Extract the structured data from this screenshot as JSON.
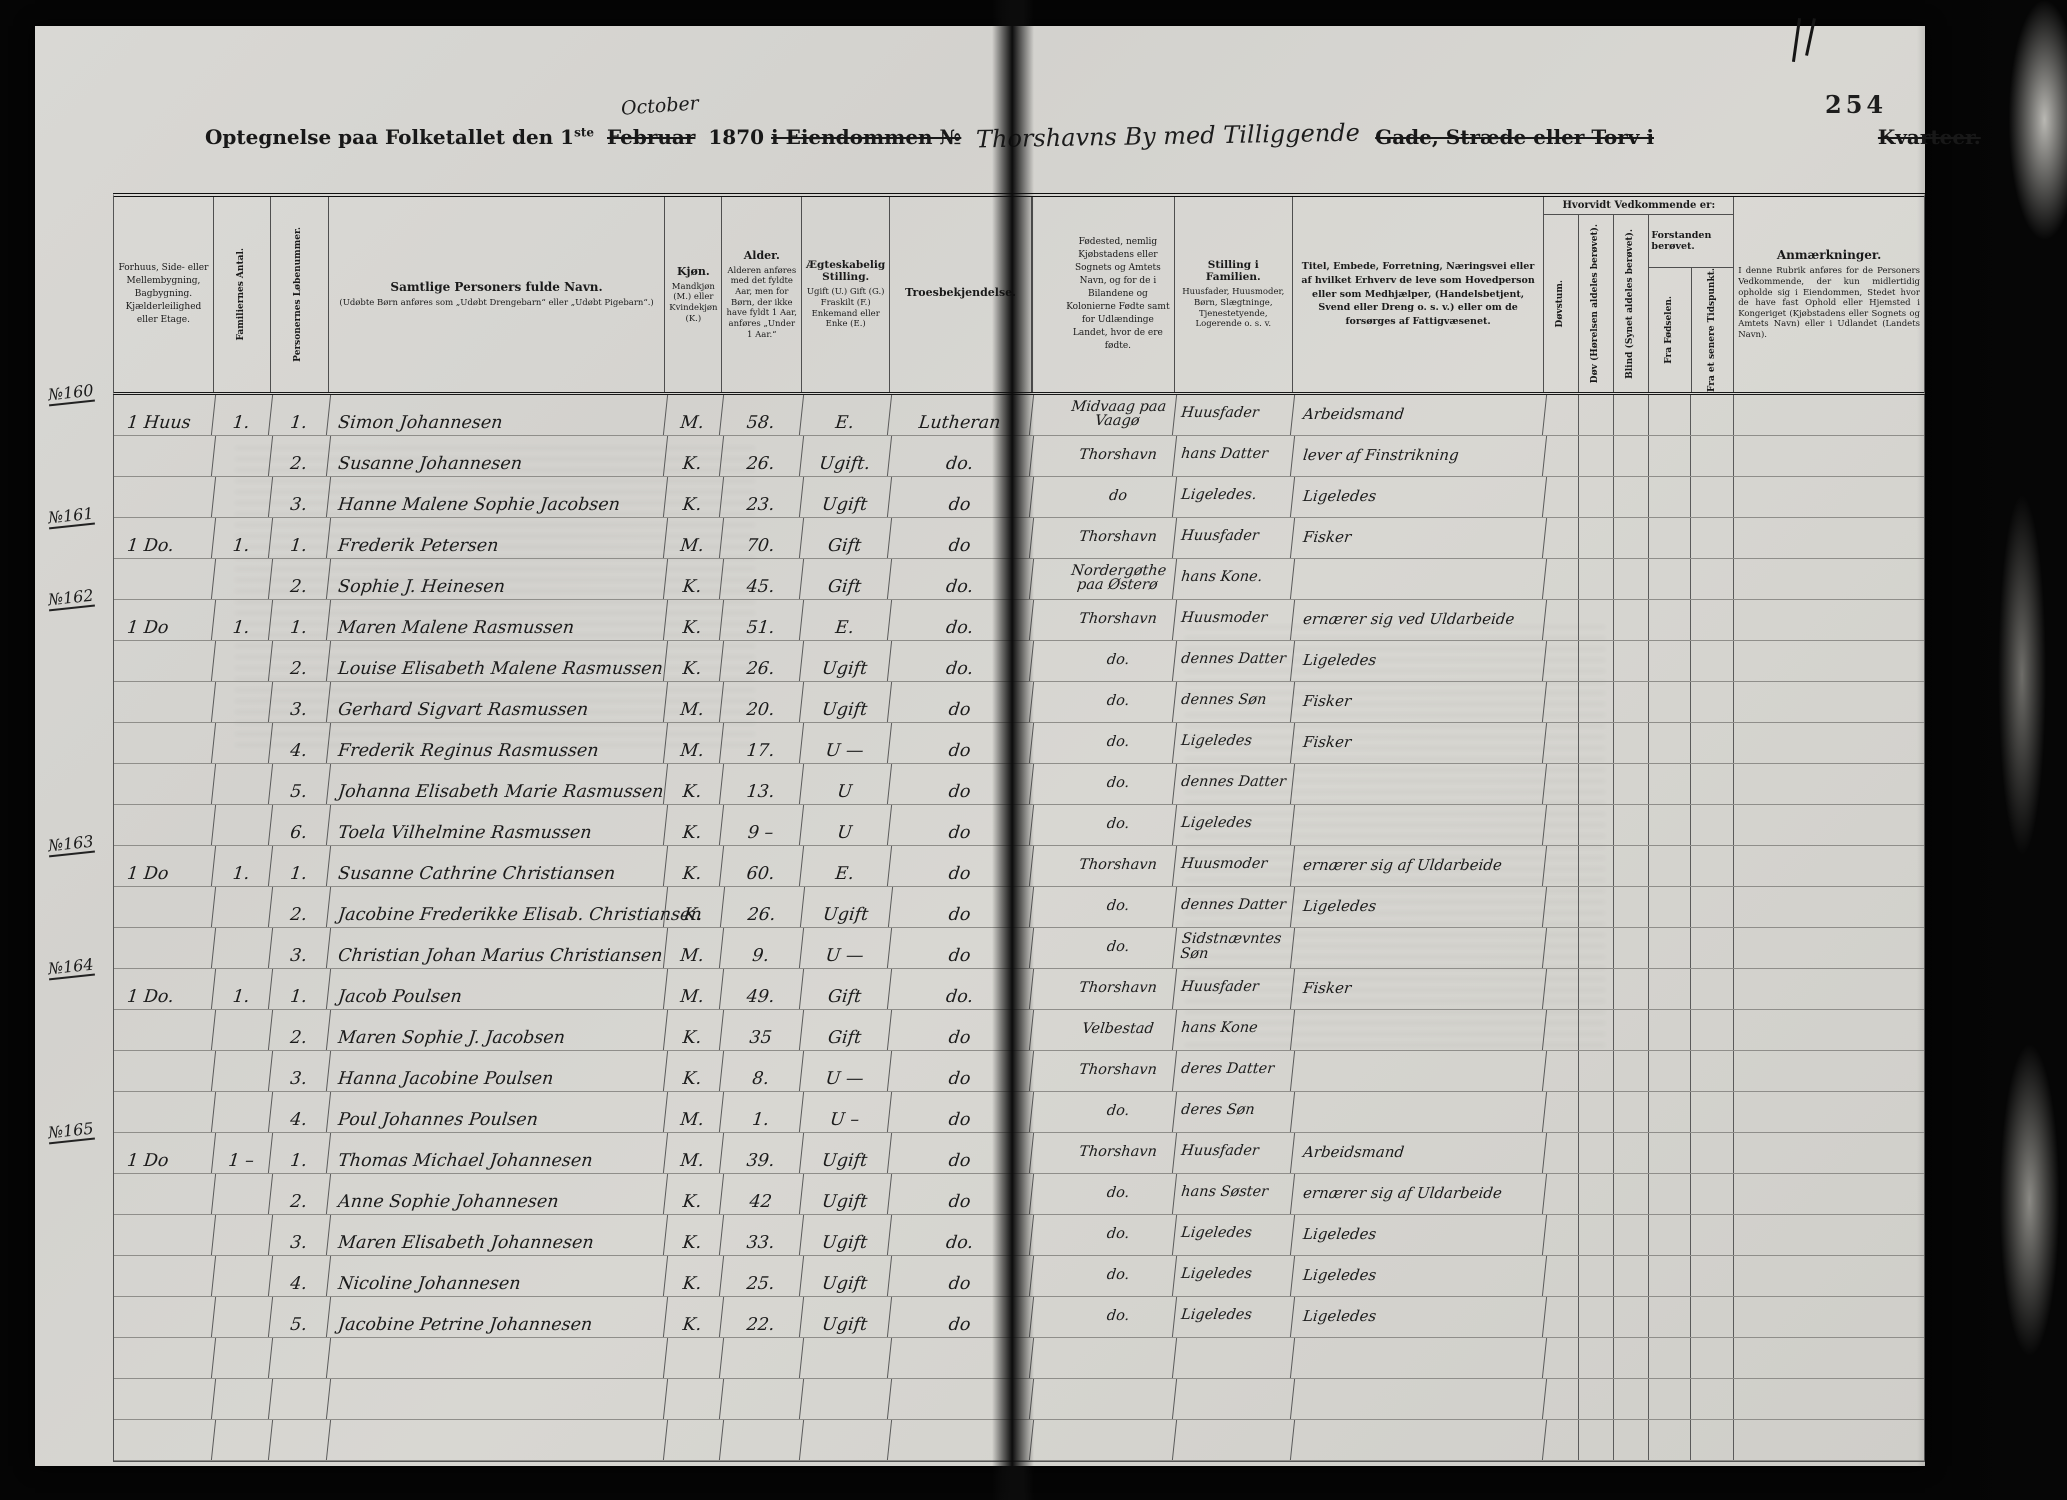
{
  "page_number": "254",
  "title": {
    "prefix": "Optegnelse paa Folketallet den 1",
    "superscript": "ste",
    "month_struck": "Februar",
    "month_handwritten": "October",
    "year": "1870",
    "struck_property": "i Eiendommen №",
    "handwritten_location": "Thorshavns By med Tilliggende",
    "struck_street": "Gade, Stræde eller Torv i",
    "struck_quarter": "Kvarteer."
  },
  "headers": {
    "building": "Forhuus, Side- eller Mellembygning, Bagbygning. Kjælderleilighed eller Etage.",
    "families": "Familiernes Antal.",
    "person_number": "Personernes Løbenummer.",
    "name_title": "Samtlige Personers fulde Navn.",
    "name_note": "(Udøbte Børn anføres som „Udøbt Drengebarn“ eller „Udøbt Pigebarn“.)",
    "sex_title": "Kjøn.",
    "sex_note": "Mandkjøn (M.) eller Kvindekjøn (K.)",
    "age_title": "Alder.",
    "age_note": "Alderen anføres med det fyldte Aar, men for Børn, der ikke have fyldt 1 Aar, anføres „Under 1 Aar.“",
    "marital_title": "Ægteskabelig Stilling.",
    "marital_note": "Ugift (U.) Gift (G.) Fraskilt (F.) Enkemand eller Enke (E.)",
    "religion": "Troesbekjendelse.",
    "birthplace": "Fødested, nemlig Kjøbstadens eller Sognets og Amtets Navn, og for de i Bilandene og Kolonierne Fødte samt for Udlændinge Landet, hvor de ere fødte.",
    "position_title": "Stilling i Familien.",
    "position_note": "Huusfader, Huusmoder, Børn, Slægtninge, Tjenestetyende, Logerende o. s. v.",
    "occupation": "Titel, Embede, Forretning, Næringsvei eller af hvilket Erhverv de leve som Hovedperson eller som Medhjælper, (Handelsbetjent, Svend eller Dreng o. s. v.) eller om de forsørges af Fattigvæsenet.",
    "disability_group": "Hvorvidt Vedkommende er:",
    "deaf_mute": "Døvstum.",
    "deaf": "Døv (Hørelsen aldeles berøvet).",
    "blind": "Blind (Synet aldeles berøvet).",
    "insane_group": "Forstanden berøvet.",
    "insane_birth": "Fra Fødselen.",
    "insane_later": "Fra et senere Tidspunkt.",
    "remarks_title": "Anmærkninger.",
    "remarks_note": "I denne Rubrik anføres for de Personers Vedkommende, der kun midlertidig opholde sig i Eiendommen, Stedet hvor de have fast Ophold eller Hjemsted i Kongeriget (Kjøbstadens eller Sognets og Amtets Navn) eller i Udlandet (Landets Navn)."
  },
  "rows": [
    {
      "no": "№160",
      "house": "1 Huus",
      "fam": "1.",
      "pno": "1.",
      "name": "Simon Johannesen",
      "sex": "M.",
      "age": "58.",
      "marital": "E.",
      "religion": "Lutheran",
      "birthplace": "Midvaag paa Vaagø",
      "position": "Huusfader",
      "occupation": "Arbeidsmand"
    },
    {
      "no": "",
      "house": "",
      "fam": "",
      "pno": "2.",
      "name": "Susanne Johannesen",
      "sex": "K.",
      "age": "26.",
      "marital": "Ugift.",
      "religion": "do.",
      "birthplace": "Thorshavn",
      "position": "hans Datter",
      "occupation": "lever af Finstrikning"
    },
    {
      "no": "",
      "house": "",
      "fam": "",
      "pno": "3.",
      "name": "Hanne Malene Sophie Jacobsen",
      "sex": "K.",
      "age": "23.",
      "marital": "Ugift",
      "religion": "do",
      "birthplace": "do",
      "position": "Ligeledes.",
      "occupation": "Ligeledes"
    },
    {
      "no": "№161",
      "house": "1 Do.",
      "fam": "1.",
      "pno": "1.",
      "name": "Frederik Petersen",
      "sex": "M.",
      "age": "70.",
      "marital": "Gift",
      "religion": "do",
      "birthplace": "Thorshavn",
      "position": "Huusfader",
      "occupation": "Fisker"
    },
    {
      "no": "",
      "house": "",
      "fam": "",
      "pno": "2.",
      "name": "Sophie J. Heinesen",
      "sex": "K.",
      "age": "45.",
      "marital": "Gift",
      "religion": "do.",
      "birthplace": "Nordergøthe paa Østerø",
      "position": "hans Kone.",
      "occupation": ""
    },
    {
      "no": "№162",
      "house": "1 Do",
      "fam": "1.",
      "pno": "1.",
      "name": "Maren Malene Rasmussen",
      "sex": "K.",
      "age": "51.",
      "marital": "E.",
      "religion": "do.",
      "birthplace": "Thorshavn",
      "position": "Huusmoder",
      "occupation": "ernærer sig ved Uldarbeide"
    },
    {
      "no": "",
      "house": "",
      "fam": "",
      "pno": "2.",
      "name": "Louise Elisabeth Malene Rasmussen",
      "sex": "K.",
      "age": "26.",
      "marital": "Ugift",
      "religion": "do.",
      "birthplace": "do.",
      "position": "dennes Datter",
      "occupation": "Ligeledes"
    },
    {
      "no": "",
      "house": "",
      "fam": "",
      "pno": "3.",
      "name": "Gerhard Sigvart Rasmussen",
      "sex": "M.",
      "age": "20.",
      "marital": "Ugift",
      "religion": "do",
      "birthplace": "do.",
      "position": "dennes Søn",
      "occupation": "Fisker"
    },
    {
      "no": "",
      "house": "",
      "fam": "",
      "pno": "4.",
      "name": "Frederik Reginus Rasmussen",
      "sex": "M.",
      "age": "17.",
      "marital": "U —",
      "religion": "do",
      "birthplace": "do.",
      "position": "Ligeledes",
      "occupation": "Fisker"
    },
    {
      "no": "",
      "house": "",
      "fam": "",
      "pno": "5.",
      "name": "Johanna Elisabeth Marie Rasmussen",
      "sex": "K.",
      "age": "13.",
      "marital": "U",
      "religion": "do",
      "birthplace": "do.",
      "position": "dennes Datter",
      "occupation": ""
    },
    {
      "no": "",
      "house": "",
      "fam": "",
      "pno": "6.",
      "name": "Toela Vilhelmine Rasmussen",
      "sex": "K.",
      "age": "9 –",
      "marital": "U",
      "religion": "do",
      "birthplace": "do.",
      "position": "Ligeledes",
      "occupation": ""
    },
    {
      "no": "№163",
      "house": "1 Do",
      "fam": "1.",
      "pno": "1.",
      "name": "Susanne Cathrine Christiansen",
      "sex": "K.",
      "age": "60.",
      "marital": "E.",
      "religion": "do",
      "birthplace": "Thorshavn",
      "position": "Huusmoder",
      "occupation": "ernærer sig af Uldarbeide"
    },
    {
      "no": "",
      "house": "",
      "fam": "",
      "pno": "2.",
      "name": "Jacobine Frederikke Elisab. Christiansen",
      "sex": "K.",
      "age": "26.",
      "marital": "Ugift",
      "religion": "do",
      "birthplace": "do.",
      "position": "dennes Datter",
      "occupation": "Ligeledes"
    },
    {
      "no": "",
      "house": "",
      "fam": "",
      "pno": "3.",
      "name": "Christian Johan Marius Christiansen",
      "sex": "M.",
      "age": "9.",
      "marital": "U —",
      "religion": "do",
      "birthplace": "do.",
      "position": "Sidstnævntes Søn",
      "occupation": ""
    },
    {
      "no": "№164",
      "house": "1 Do.",
      "fam": "1.",
      "pno": "1.",
      "name": "Jacob Poulsen",
      "sex": "M.",
      "age": "49.",
      "marital": "Gift",
      "religion": "do.",
      "birthplace": "Thorshavn",
      "position": "Huusfader",
      "occupation": "Fisker"
    },
    {
      "no": "",
      "house": "",
      "fam": "",
      "pno": "2.",
      "name": "Maren Sophie J. Jacobsen",
      "sex": "K.",
      "age": "35",
      "marital": "Gift",
      "religion": "do",
      "birthplace": "Velbestad",
      "position": "hans Kone",
      "occupation": ""
    },
    {
      "no": "",
      "house": "",
      "fam": "",
      "pno": "3.",
      "name": "Hanna Jacobine Poulsen",
      "sex": "K.",
      "age": "8.",
      "marital": "U —",
      "religion": "do",
      "birthplace": "Thorshavn",
      "position": "deres Datter",
      "occupation": ""
    },
    {
      "no": "",
      "house": "",
      "fam": "",
      "pno": "4.",
      "name": "Poul Johannes Poulsen",
      "sex": "M.",
      "age": "1.",
      "marital": "U –",
      "religion": "do",
      "birthplace": "do.",
      "position": "deres Søn",
      "occupation": ""
    },
    {
      "no": "№165",
      "house": "1 Do",
      "fam": "1 –",
      "pno": "1.",
      "name": "Thomas Michael Johannesen",
      "sex": "M.",
      "age": "39.",
      "marital": "Ugift",
      "religion": "do",
      "birthplace": "Thorshavn",
      "position": "Huusfader",
      "occupation": "Arbeidsmand"
    },
    {
      "no": "",
      "house": "",
      "fam": "",
      "pno": "2.",
      "name": "Anne Sophie Johannesen",
      "sex": "K.",
      "age": "42",
      "marital": "Ugift",
      "religion": "do",
      "birthplace": "do.",
      "position": "hans Søster",
      "occupation": "ernærer sig af Uldarbeide"
    },
    {
      "no": "",
      "house": "",
      "fam": "",
      "pno": "3.",
      "name": "Maren Elisabeth Johannesen",
      "sex": "K.",
      "age": "33.",
      "marital": "Ugift",
      "religion": "do.",
      "birthplace": "do.",
      "position": "Ligeledes",
      "occupation": "Ligeledes"
    },
    {
      "no": "",
      "house": "",
      "fam": "",
      "pno": "4.",
      "name": "Nicoline Johannesen",
      "sex": "K.",
      "age": "25.",
      "marital": "Ugift",
      "religion": "do",
      "birthplace": "do.",
      "position": "Ligeledes",
      "occupation": "Ligeledes"
    },
    {
      "no": "",
      "house": "",
      "fam": "",
      "pno": "5.",
      "name": "Jacobine Petrine Johannesen",
      "sex": "K.",
      "age": "22.",
      "marital": "Ugift",
      "religion": "do",
      "birthplace": "do.",
      "position": "Ligeledes",
      "occupation": "Ligeledes"
    },
    {
      "no": "",
      "house": "",
      "fam": "",
      "pno": "",
      "name": "",
      "sex": "",
      "age": "",
      "marital": "",
      "religion": "",
      "birthplace": "",
      "position": "",
      "occupation": ""
    },
    {
      "no": "",
      "house": "",
      "fam": "",
      "pno": "",
      "name": "",
      "sex": "",
      "age": "",
      "marital": "",
      "religion": "",
      "birthplace": "",
      "position": "",
      "occupation": ""
    },
    {
      "no": "",
      "house": "",
      "fam": "",
      "pno": "",
      "name": "",
      "sex": "",
      "age": "",
      "marital": "",
      "religion": "",
      "birthplace": "",
      "position": "",
      "occupation": ""
    }
  ]
}
